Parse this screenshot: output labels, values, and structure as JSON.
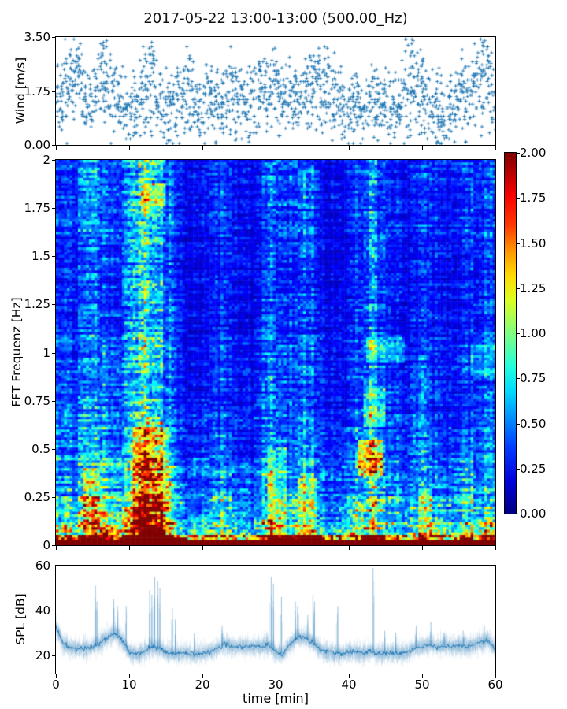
{
  "title": "2017-05-22 13:00-13:00 (500.00_Hz)",
  "accent_color": "#1f77b4",
  "chart_data": [
    {
      "id": "wind",
      "type": "scatter",
      "ylabel": "Wind [m/s]",
      "marker": "+",
      "color": "#1f77b4",
      "xlim": [
        0,
        60
      ],
      "ylim": [
        0,
        3.5
      ],
      "yticks": [
        {
          "value": 0.0,
          "label": "0.00"
        },
        {
          "value": 1.75,
          "label": "1.75"
        },
        {
          "value": 3.5,
          "label": "3.50"
        }
      ],
      "n_points": 1700,
      "spread": 0.42,
      "mean_profile": [
        1.55,
        1.45,
        1.85,
        2.1,
        1.5,
        1.35,
        2.0,
        1.9,
        1.45,
        1.1,
        0.95,
        1.3,
        1.7,
        2.05,
        1.55,
        1.0,
        1.25,
        1.5,
        1.75,
        1.35,
        1.05,
        1.45,
        1.35,
        1.3,
        1.6,
        1.5,
        1.2,
        1.55,
        1.7,
        1.55,
        1.75,
        1.5,
        1.55,
        1.45,
        1.65,
        1.8,
        1.7,
        1.9,
        1.55,
        1.2,
        1.05,
        1.35,
        0.95,
        1.25,
        1.15,
        1.4,
        1.1,
        1.45,
        1.9,
        2.1,
        1.6,
        1.3,
        0.95,
        0.85,
        1.2,
        1.55,
        1.3,
        1.7,
        2.15,
        2.0,
        1.65
      ],
      "peaks": [
        {
          "t": 2.1,
          "v": 3.1
        },
        {
          "t": 3.4,
          "v": 3.3
        },
        {
          "t": 6.4,
          "v": 3.35
        },
        {
          "t": 13.2,
          "v": 3.35
        },
        {
          "t": 16.5,
          "v": 2.5
        },
        {
          "t": 21.0,
          "v": 2.4
        },
        {
          "t": 24.6,
          "v": 2.5
        },
        {
          "t": 27.9,
          "v": 2.7
        },
        {
          "t": 30.2,
          "v": 2.6
        },
        {
          "t": 32.6,
          "v": 2.4
        },
        {
          "t": 35.1,
          "v": 2.9
        },
        {
          "t": 37.2,
          "v": 2.6
        },
        {
          "t": 41.2,
          "v": 2.2
        },
        {
          "t": 44.8,
          "v": 2.1
        },
        {
          "t": 48.6,
          "v": 3.5
        },
        {
          "t": 50.1,
          "v": 2.8
        },
        {
          "t": 52.3,
          "v": 2.5
        },
        {
          "t": 55.2,
          "v": 2.3
        },
        {
          "t": 58.3,
          "v": 3.4
        },
        {
          "t": 59.1,
          "v": 3.2
        }
      ]
    },
    {
      "id": "spectrogram",
      "type": "heatmap",
      "ylabel": "FFT Frequenz [Hz]",
      "colormap": "jet",
      "xlim": [
        0,
        60
      ],
      "ylim": [
        0,
        2
      ],
      "clim": [
        0,
        2
      ],
      "yticks": [
        {
          "value": 0,
          "label": "0"
        },
        {
          "value": 0.25,
          "label": "0.25"
        },
        {
          "value": 0.5,
          "label": "0.5"
        },
        {
          "value": 0.75,
          "label": "0.75"
        },
        {
          "value": 1,
          "label": "1"
        },
        {
          "value": 1.25,
          "label": "1.25"
        },
        {
          "value": 1.5,
          "label": "1.5"
        },
        {
          "value": 1.75,
          "label": "1.75"
        },
        {
          "value": 2,
          "label": "2"
        }
      ],
      "colorbar_ticks": [
        {
          "value": 0.0,
          "label": "0.00"
        },
        {
          "value": 0.25,
          "label": "0.25"
        },
        {
          "value": 0.5,
          "label": "0.50"
        },
        {
          "value": 0.75,
          "label": "0.75"
        },
        {
          "value": 1.0,
          "label": "1.00"
        },
        {
          "value": 1.25,
          "label": "1.25"
        },
        {
          "value": 1.5,
          "label": "1.50"
        },
        {
          "value": 1.75,
          "label": "1.75"
        },
        {
          "value": 2.0,
          "label": "2.00"
        }
      ],
      "time_profile": [
        0.62,
        0.5,
        0.45,
        0.5,
        0.6,
        0.78,
        0.72,
        0.52,
        0.5,
        0.52,
        0.7,
        1.05,
        1.1,
        1.15,
        1.05,
        0.7,
        0.55,
        0.4,
        0.34,
        0.32,
        0.32,
        0.36,
        0.46,
        0.52,
        0.38,
        0.33,
        0.32,
        0.33,
        0.4,
        0.68,
        0.64,
        0.5,
        0.48,
        0.62,
        0.66,
        0.58,
        0.38,
        0.33,
        0.36,
        0.33,
        0.38,
        0.52,
        0.62,
        0.78,
        0.62,
        0.48,
        0.44,
        0.38,
        0.38,
        0.44,
        0.54,
        0.52,
        0.42,
        0.36,
        0.38,
        0.42,
        0.46,
        0.5,
        0.52,
        0.56,
        0.52
      ],
      "hotspots": [
        {
          "t": [
            10.5,
            15.2
          ],
          "f": [
            0.0,
            0.62
          ],
          "boost": 0.55
        },
        {
          "t": [
            11.8,
            15.0
          ],
          "f": [
            1.76,
            1.88
          ],
          "boost": 0.45
        },
        {
          "t": [
            41.3,
            44.6
          ],
          "f": [
            0.36,
            0.54
          ],
          "boost": 0.85
        },
        {
          "t": [
            42.0,
            45.0
          ],
          "f": [
            0.62,
            0.82
          ],
          "boost": 0.35
        },
        {
          "t": [
            42.5,
            47.5
          ],
          "f": [
            0.95,
            1.08
          ],
          "boost": 0.3
        },
        {
          "t": [
            56.5,
            60.0
          ],
          "f": [
            0.88,
            1.04
          ],
          "boost": 0.25
        },
        {
          "t": [
            28.8,
            31.5
          ],
          "f": [
            0.0,
            0.5
          ],
          "boost": 0.3
        },
        {
          "t": [
            33.0,
            35.5
          ],
          "f": [
            0.0,
            0.35
          ],
          "boost": 0.35
        },
        {
          "t": [
            3.8,
            6.5
          ],
          "f": [
            0.0,
            0.4
          ],
          "boost": 0.25
        },
        {
          "t": [
            49.5,
            51.5
          ],
          "f": [
            0.0,
            0.3
          ],
          "boost": 0.25
        }
      ],
      "bottom_band_value": 2.0
    },
    {
      "id": "spl",
      "type": "line",
      "ylabel": "SPL [dB]",
      "xlabel": "time [min]",
      "color": "#1f77b4",
      "xlim": [
        0,
        60
      ],
      "ylim": [
        12,
        60
      ],
      "yticks": [
        {
          "value": 20,
          "label": "20"
        },
        {
          "value": 40,
          "label": "40"
        },
        {
          "value": 60,
          "label": "60"
        }
      ],
      "xticks": [
        {
          "value": 0,
          "label": "0"
        },
        {
          "value": 10,
          "label": "10"
        },
        {
          "value": 20,
          "label": "20"
        },
        {
          "value": 30,
          "label": "30"
        },
        {
          "value": 40,
          "label": "40"
        },
        {
          "value": 50,
          "label": "50"
        },
        {
          "value": 60,
          "label": "60"
        }
      ],
      "base_profile": [
        33,
        25,
        23.5,
        23,
        23,
        24,
        25.5,
        28,
        30,
        27,
        21.5,
        20.5,
        21.5,
        24,
        23,
        21.5,
        20.5,
        21,
        21,
        20.5,
        21,
        21.5,
        23,
        25,
        24,
        24,
        24,
        24,
        24,
        25,
        21.5,
        20.5,
        25,
        28,
        28,
        26,
        23,
        21.5,
        21,
        20.5,
        21.5,
        21.5,
        21,
        22,
        20.8,
        21,
        21.2,
        20.8,
        21.5,
        23.5,
        24,
        25,
        23.5,
        24.5,
        24,
        24.5,
        24,
        24.5,
        26,
        26.5,
        23
      ],
      "spikes": [
        {
          "t": 5.4,
          "v": 51
        },
        {
          "t": 5.6,
          "v": 44
        },
        {
          "t": 7.9,
          "v": 45
        },
        {
          "t": 8.4,
          "v": 42
        },
        {
          "t": 9.6,
          "v": 42
        },
        {
          "t": 12.8,
          "v": 49
        },
        {
          "t": 13.1,
          "v": 47
        },
        {
          "t": 13.5,
          "v": 55
        },
        {
          "t": 13.9,
          "v": 53
        },
        {
          "t": 14.2,
          "v": 50
        },
        {
          "t": 15.9,
          "v": 41
        },
        {
          "t": 16.3,
          "v": 36
        },
        {
          "t": 18.9,
          "v": 30
        },
        {
          "t": 22.7,
          "v": 33
        },
        {
          "t": 29.4,
          "v": 55
        },
        {
          "t": 29.7,
          "v": 52
        },
        {
          "t": 30.8,
          "v": 46
        },
        {
          "t": 32.7,
          "v": 44
        },
        {
          "t": 33.0,
          "v": 42
        },
        {
          "t": 34.4,
          "v": 38
        },
        {
          "t": 35.1,
          "v": 47
        },
        {
          "t": 35.3,
          "v": 44
        },
        {
          "t": 38.5,
          "v": 42
        },
        {
          "t": 43.3,
          "v": 59
        },
        {
          "t": 44.9,
          "v": 31
        },
        {
          "t": 46.4,
          "v": 30
        },
        {
          "t": 49.2,
          "v": 33
        },
        {
          "t": 51.2,
          "v": 35
        },
        {
          "t": 53.0,
          "v": 30
        },
        {
          "t": 55.6,
          "v": 31
        },
        {
          "t": 58.5,
          "v": 33
        },
        {
          "t": 58.9,
          "v": 31
        }
      ]
    }
  ]
}
